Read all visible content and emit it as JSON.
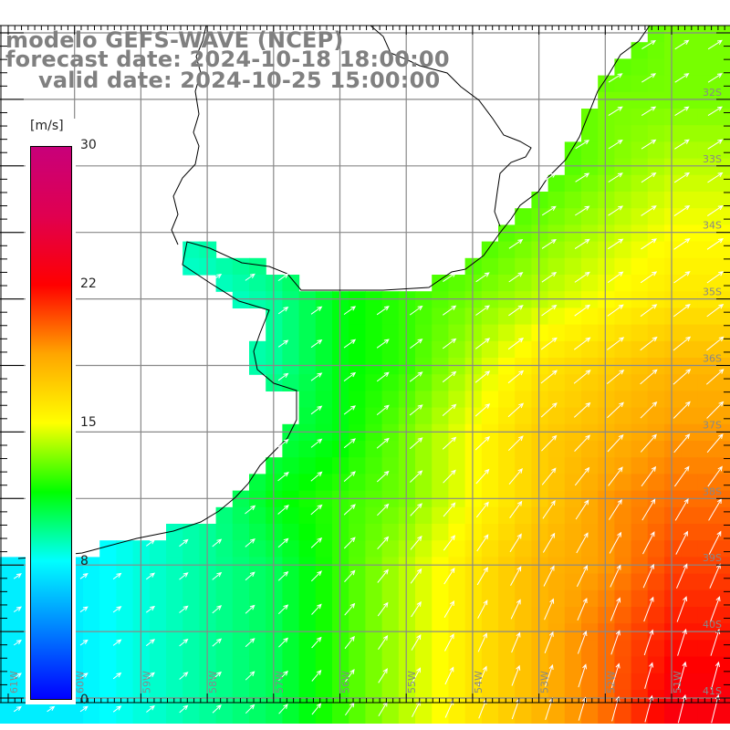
{
  "title": {
    "line1": "modelo GEFS-WAVE (NCEP)",
    "line2": "forecast date: 2024-10-18 18:00:00",
    "line3": "valid date: 2024-10-25 15:00:00"
  },
  "colorbar": {
    "unit": "[m/s]",
    "ticks": [
      "30",
      "22",
      "15",
      "8",
      "0"
    ],
    "range": [
      0,
      30
    ]
  },
  "axes": {
    "lon_labels": [
      "61W",
      "60W",
      "59W",
      "58W",
      "57W",
      "56W",
      "55W",
      "54W",
      "53W",
      "52W",
      "51W"
    ],
    "lat_labels": [
      "32S",
      "33S",
      "34S",
      "35S",
      "36S",
      "37S",
      "38S",
      "39S",
      "40S",
      "41S"
    ]
  },
  "field": {
    "variable": "wind speed",
    "lon": [
      -61,
      -60,
      -59,
      -58,
      -57,
      -56,
      -55,
      -54,
      -53,
      -52,
      -51
    ],
    "lat": [
      -31,
      -32,
      -33,
      -34,
      -35,
      -36,
      -37,
      -38,
      -39,
      -40,
      -41
    ],
    "speed_ms": [
      [
        7,
        7,
        8,
        9,
        10,
        11,
        12,
        12,
        12,
        12,
        13
      ],
      [
        7,
        7,
        8,
        9,
        10,
        11,
        12,
        12,
        12,
        13,
        13
      ],
      [
        7,
        7,
        8,
        9,
        10,
        11,
        12,
        12,
        12,
        13,
        14
      ],
      [
        7,
        7,
        8,
        9,
        10,
        11,
        12,
        12,
        13,
        14,
        15
      ],
      [
        7,
        7,
        8,
        8,
        9,
        11,
        12,
        13,
        14,
        15,
        16
      ],
      [
        7,
        7,
        8,
        8,
        9,
        11,
        12,
        14,
        16,
        17,
        18
      ],
      [
        7,
        7,
        8,
        9,
        10,
        11,
        13,
        15,
        17,
        18,
        19
      ],
      [
        7,
        7,
        8,
        9,
        11,
        12,
        13,
        15,
        17,
        19,
        20
      ],
      [
        7,
        7,
        8,
        9,
        10,
        12,
        14,
        16,
        18,
        19,
        21
      ],
      [
        7,
        7,
        8,
        9,
        10,
        12,
        14,
        16,
        18,
        20,
        22
      ],
      [
        7,
        7,
        8,
        9,
        10,
        12,
        14,
        16,
        18,
        20,
        23
      ]
    ],
    "direction_deg_ccw_from_east": [
      [
        35,
        35,
        35,
        35,
        33,
        32,
        32,
        32,
        32,
        32,
        32
      ],
      [
        35,
        35,
        35,
        35,
        33,
        32,
        32,
        32,
        32,
        32,
        32
      ],
      [
        35,
        35,
        35,
        35,
        33,
        32,
        32,
        32,
        32,
        32,
        33
      ],
      [
        35,
        35,
        35,
        35,
        34,
        33,
        33,
        33,
        33,
        33,
        34
      ],
      [
        35,
        35,
        35,
        35,
        35,
        35,
        35,
        35,
        35,
        35,
        36
      ],
      [
        35,
        35,
        35,
        35,
        35,
        36,
        37,
        38,
        38,
        38,
        40
      ],
      [
        35,
        35,
        35,
        36,
        37,
        38,
        40,
        42,
        44,
        45,
        48
      ],
      [
        35,
        35,
        36,
        37,
        39,
        42,
        45,
        50,
        54,
        56,
        58
      ],
      [
        35,
        35,
        37,
        39,
        42,
        46,
        52,
        58,
        62,
        64,
        66
      ],
      [
        35,
        35,
        37,
        40,
        44,
        50,
        58,
        64,
        68,
        70,
        72
      ],
      [
        35,
        35,
        38,
        42,
        46,
        54,
        62,
        68,
        72,
        74,
        76
      ]
    ]
  }
}
